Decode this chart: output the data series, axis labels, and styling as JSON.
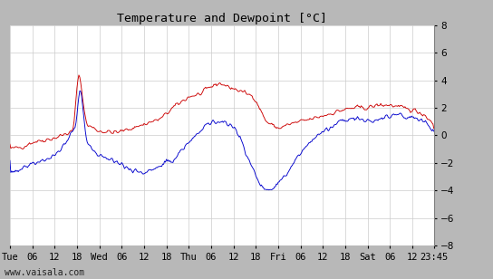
{
  "title": "Temperature and Dewpoint [°C]",
  "ylim": [
    -8,
    8
  ],
  "yticks": [
    -8,
    -6,
    -4,
    -2,
    0,
    2,
    4,
    6,
    8
  ],
  "xtick_labels": [
    "Tue",
    "06",
    "12",
    "18",
    "Wed",
    "06",
    "12",
    "18",
    "Thu",
    "06",
    "12",
    "18",
    "Fri",
    "06",
    "12",
    "18",
    "Sat",
    "06",
    "12",
    "23:45"
  ],
  "temp_color": "#cc0000",
  "dewp_color": "#0000cc",
  "plot_bg": "#ffffff",
  "outer_bg": "#b8b8b8",
  "grid_color": "#cccccc",
  "footer_text": "www.vaisala.com",
  "title_fontsize": 9.5,
  "tick_fontsize": 7.5,
  "footer_fontsize": 7
}
